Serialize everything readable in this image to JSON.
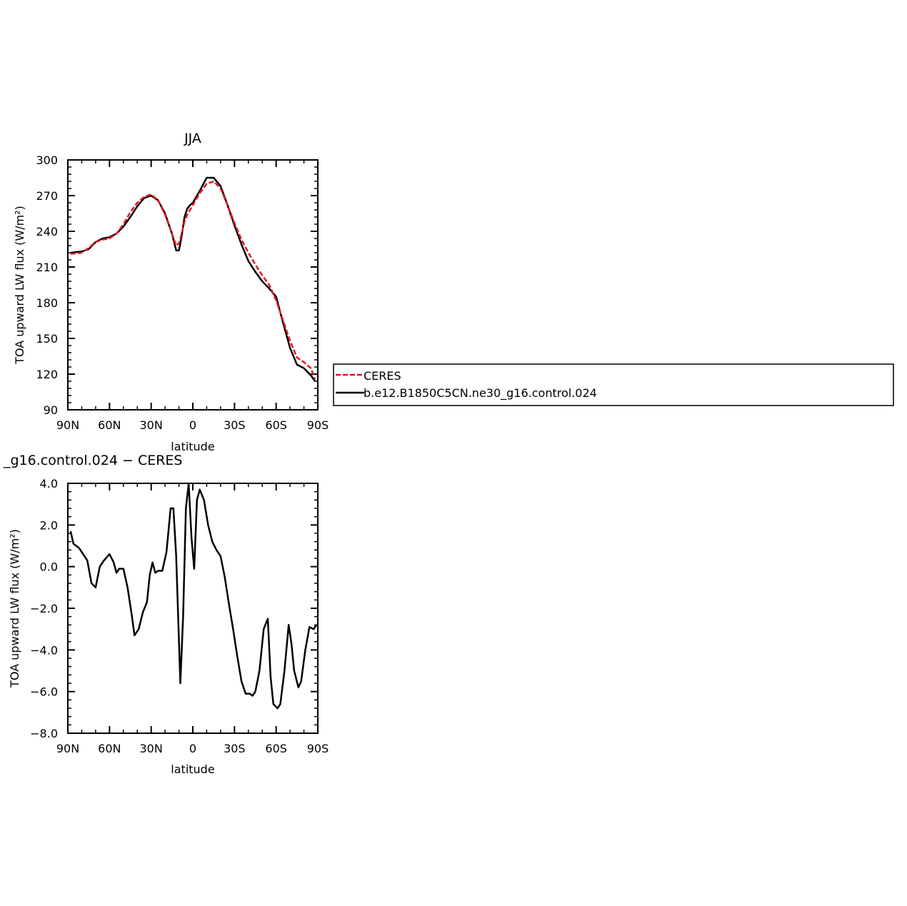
{
  "chart_data": [
    {
      "type": "line",
      "title": "JJA",
      "xlabel": "latitude",
      "ylabel": "TOA upward LW flux (W/m²)",
      "xlim": [
        90,
        -90
      ],
      "ylim": [
        90,
        300
      ],
      "x_ticks": [
        90,
        60,
        30,
        0,
        -30,
        -60,
        -90
      ],
      "x_tick_labels": [
        "90N",
        "60N",
        "30N",
        "0",
        "30S",
        "60S",
        "90S"
      ],
      "y_ticks": [
        90,
        120,
        150,
        180,
        210,
        240,
        270,
        300
      ],
      "y_tick_labels": [
        "90",
        "120",
        "150",
        "180",
        "210",
        "240",
        "270",
        "300"
      ],
      "legend_placement": "right",
      "series": [
        {
          "name": "CERES",
          "color": "#e8141e",
          "dash": "dashed",
          "x": [
            88,
            80,
            75,
            70,
            65,
            60,
            55,
            50,
            45,
            40,
            35,
            30,
            25,
            20,
            15,
            12,
            10,
            8,
            6,
            4,
            2,
            0,
            -5,
            -10,
            -15,
            -20,
            -25,
            -30,
            -35,
            -40,
            -45,
            -50,
            -55,
            -60,
            -65,
            -70,
            -75,
            -80,
            -85,
            -88
          ],
          "y": [
            221,
            222,
            226,
            231,
            233,
            234,
            238,
            246,
            256,
            264,
            269,
            271,
            266,
            254,
            238,
            228,
            230,
            238,
            248,
            254,
            258,
            262,
            272,
            280,
            282,
            276,
            262,
            247,
            233,
            222,
            212,
            203,
            195,
            182,
            165,
            148,
            134,
            130,
            125,
            116
          ]
        },
        {
          "name": "b.e12.B1850C5CN.ne30_g16.control.024",
          "color": "#000000",
          "dash": "solid",
          "x": [
            88,
            80,
            75,
            70,
            65,
            60,
            55,
            50,
            45,
            40,
            35,
            30,
            25,
            20,
            15,
            12,
            10,
            8,
            6,
            4,
            2,
            0,
            -5,
            -10,
            -15,
            -20,
            -25,
            -30,
            -35,
            -40,
            -45,
            -50,
            -55,
            -60,
            -65,
            -70,
            -75,
            -80,
            -85,
            -88
          ],
          "y": [
            222,
            223,
            225,
            231,
            234,
            235,
            238,
            244,
            252,
            261,
            268,
            270,
            266,
            255,
            238,
            224,
            224,
            236,
            252,
            259,
            262,
            264,
            274,
            285,
            285,
            278,
            262,
            245,
            229,
            215,
            206,
            198,
            192,
            185,
            163,
            142,
            128,
            125,
            119,
            114
          ]
        }
      ]
    },
    {
      "type": "line",
      "title": "_g16.control.024 − CERES",
      "xlabel": "latitude",
      "ylabel": "TOA upward LW flux (W/m²)",
      "xlim": [
        90,
        -90
      ],
      "ylim": [
        -8,
        4
      ],
      "x_ticks": [
        90,
        60,
        30,
        0,
        -30,
        -60,
        -90
      ],
      "x_tick_labels": [
        "90N",
        "60N",
        "30N",
        "0",
        "30S",
        "60S",
        "90S"
      ],
      "y_ticks": [
        -8,
        -6,
        -4,
        -2,
        0,
        2,
        4
      ],
      "y_tick_labels": [
        "−8.0",
        "−6.0",
        "−4.0",
        "−2.0",
        "0.0",
        "2.0",
        "4.0"
      ],
      "series": [
        {
          "name": "",
          "color": "#000000",
          "x": [
            88,
            86,
            82,
            79,
            76,
            73,
            70,
            67,
            64,
            60,
            57,
            55,
            53,
            50,
            47,
            44,
            42,
            39,
            36,
            33,
            31,
            29,
            27,
            25,
            22,
            19,
            16,
            14,
            12,
            9,
            7,
            5,
            3,
            1,
            -1,
            -3,
            -5,
            -8,
            -11,
            -14,
            -17,
            -20,
            -23,
            -26,
            -29,
            -32,
            -35,
            -38,
            -41,
            -43,
            -45,
            -48,
            -51,
            -54,
            -56,
            -58,
            -61,
            -63,
            -66,
            -69,
            -71,
            -73,
            -76,
            -78,
            -81,
            -84,
            -87,
            -89
          ],
          "y": [
            1.7,
            1.1,
            0.9,
            0.6,
            0.3,
            -0.8,
            -1.0,
            0.0,
            0.3,
            0.6,
            0.2,
            -0.3,
            -0.1,
            -0.1,
            -1.0,
            -2.3,
            -3.3,
            -3.0,
            -2.2,
            -1.7,
            -0.4,
            0.2,
            -0.3,
            -0.2,
            -0.2,
            0.7,
            2.8,
            2.8,
            0.5,
            -5.6,
            -2.4,
            2.8,
            4.0,
            1.4,
            -0.1,
            3.2,
            3.7,
            3.2,
            2.0,
            1.2,
            0.8,
            0.5,
            -0.5,
            -1.8,
            -3.0,
            -4.3,
            -5.5,
            -6.1,
            -6.1,
            -6.2,
            -6.0,
            -5.0,
            -3.0,
            -2.5,
            -5.3,
            -6.6,
            -6.8,
            -6.6,
            -5.0,
            -2.8,
            -3.7,
            -5.0,
            -5.8,
            -5.5,
            -4.0,
            -2.9,
            -3.0,
            -2.8
          ]
        }
      ]
    }
  ]
}
